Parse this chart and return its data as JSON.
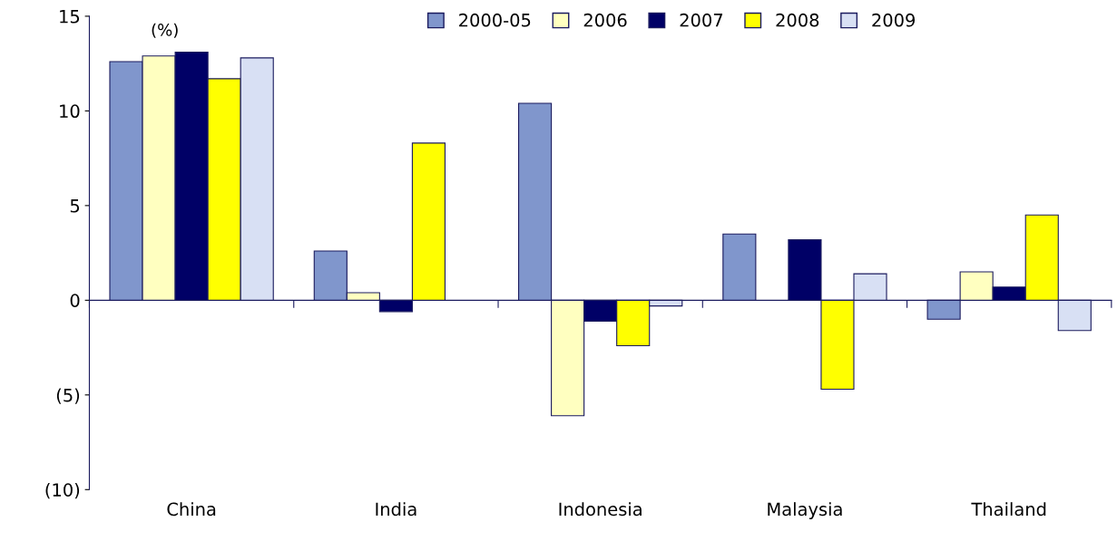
{
  "chart_data": {
    "type": "bar",
    "ylabel": "(%)",
    "categories": [
      "China",
      "India",
      "Indonesia",
      "Malaysia",
      "Thailand"
    ],
    "series": [
      {
        "name": "2000-05",
        "color": "#8096cc",
        "values": [
          12.6,
          2.6,
          10.4,
          3.5,
          -1.0
        ]
      },
      {
        "name": "2006",
        "color": "#ffffc0",
        "values": [
          12.9,
          0.4,
          -6.1,
          null,
          1.5
        ]
      },
      {
        "name": "2007",
        "color": "#000066",
        "values": [
          13.1,
          -0.6,
          -1.1,
          3.2,
          0.7
        ]
      },
      {
        "name": "2008",
        "color": "#ffff00",
        "values": [
          11.7,
          8.3,
          -2.4,
          -4.7,
          4.5
        ]
      },
      {
        "name": "2009",
        "color": "#d8e0f4",
        "values": [
          12.8,
          null,
          -0.3,
          1.4,
          -1.6
        ]
      }
    ],
    "ylim": [
      -10,
      15
    ],
    "yticks": [
      {
        "value": -10,
        "label": "(10)"
      },
      {
        "value": -5,
        "label": "(5)"
      },
      0,
      5,
      10,
      15
    ],
    "legend": "top",
    "grid": false
  }
}
